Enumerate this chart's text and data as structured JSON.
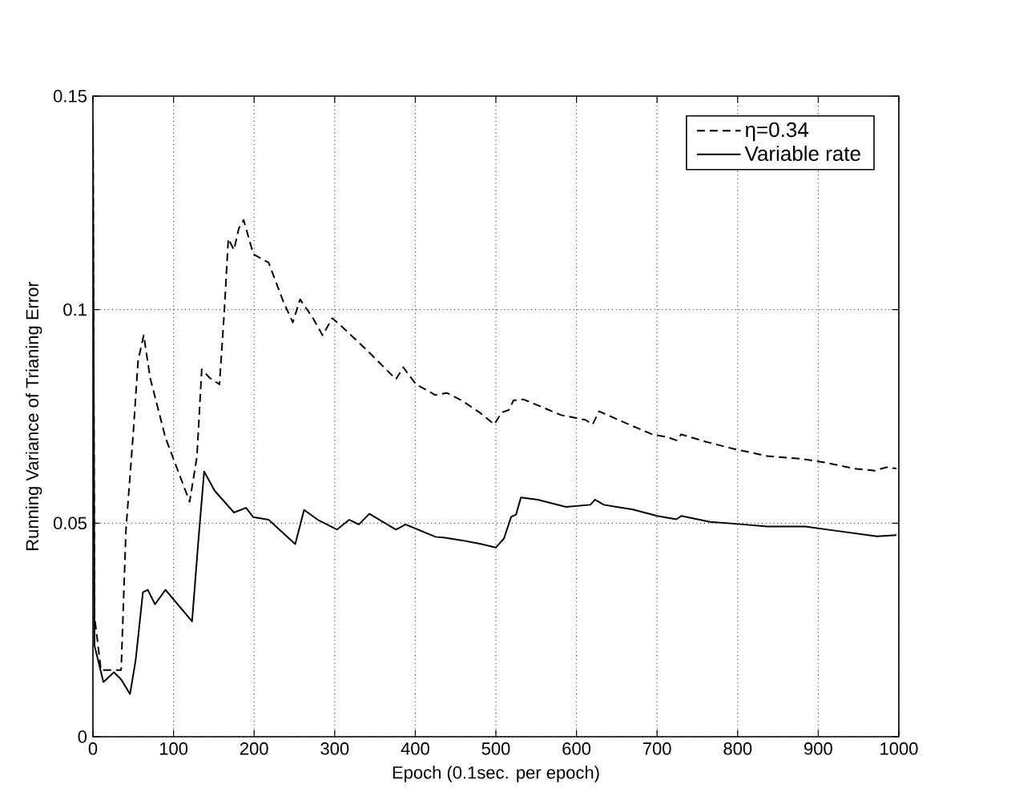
{
  "chart_data": {
    "type": "line",
    "xlabel": "Epoch (0.1sec. per epoch)",
    "ylabel": "Running Variance of Trianing Error",
    "xlim": [
      0,
      1000
    ],
    "ylim": [
      0,
      0.15
    ],
    "xticks": [
      0,
      100,
      200,
      300,
      400,
      500,
      600,
      700,
      800,
      900,
      1000
    ],
    "yticks": [
      0,
      0.05,
      0.1,
      0.15
    ],
    "grid": true,
    "legend": "top right",
    "series": [
      {
        "name": "η=0.34",
        "color": "#000000",
        "line_style": "dashed",
        "x": [
          0,
          2,
          4,
          10,
          20,
          35,
          41,
          50,
          56,
          63,
          71,
          90,
          120,
          129,
          135,
          145,
          157,
          163,
          168,
          175,
          181,
          187,
          199,
          218,
          236,
          248,
          257,
          273,
          285,
          297,
          309,
          340,
          376,
          385,
          401,
          425,
          439,
          457,
          480,
          498,
          507,
          516,
          522,
          528,
          534,
          552,
          581,
          611,
          620,
          628,
          659,
          694,
          712,
          724,
          730,
          760,
          795,
          837,
          878,
          908,
          944,
          970,
          985,
          997
        ],
        "values": [
          0.144,
          0.028,
          0.025,
          0.0156,
          0.0156,
          0.0156,
          0.0485,
          0.071,
          0.088,
          0.094,
          0.084,
          0.07,
          0.055,
          0.0655,
          0.086,
          0.084,
          0.0825,
          0.0995,
          0.1166,
          0.114,
          0.119,
          0.121,
          0.113,
          0.111,
          0.102,
          0.097,
          0.1024,
          0.098,
          0.094,
          0.098,
          0.096,
          0.0905,
          0.0837,
          0.0865,
          0.0825,
          0.08,
          0.0805,
          0.0788,
          0.0759,
          0.0731,
          0.0759,
          0.0765,
          0.0788,
          0.0788,
          0.079,
          0.0776,
          0.0753,
          0.0742,
          0.0731,
          0.0762,
          0.0736,
          0.0708,
          0.0702,
          0.0694,
          0.0708,
          0.0691,
          0.0674,
          0.0657,
          0.0651,
          0.0642,
          0.0628,
          0.0623,
          0.0631,
          0.0628
        ]
      },
      {
        "name": "Variable rate",
        "color": "#000000",
        "line_style": "solid",
        "x": [
          0,
          2,
          5,
          13,
          26,
          35,
          46,
          53,
          62,
          68,
          77,
          90,
          123,
          131,
          138,
          151,
          175,
          190,
          199,
          218,
          251,
          262,
          279,
          303,
          318,
          330,
          343,
          376,
          388,
          425,
          437,
          457,
          480,
          500,
          510,
          519,
          525,
          531,
          552,
          587,
          617,
          623,
          634,
          670,
          700,
          724,
          730,
          766,
          801,
          837,
          884,
          919,
          973,
          997
        ],
        "values": [
          0.144,
          0.0213,
          0.019,
          0.0128,
          0.0151,
          0.0134,
          0.01,
          0.0179,
          0.0338,
          0.0344,
          0.031,
          0.0344,
          0.027,
          0.0463,
          0.0621,
          0.0576,
          0.0525,
          0.0536,
          0.0514,
          0.0508,
          0.0451,
          0.0531,
          0.0508,
          0.0485,
          0.0508,
          0.0497,
          0.0522,
          0.0485,
          0.0497,
          0.0468,
          0.0466,
          0.046,
          0.0452,
          0.0443,
          0.0464,
          0.0515,
          0.052,
          0.056,
          0.0555,
          0.0538,
          0.0543,
          0.0555,
          0.0543,
          0.0532,
          0.0517,
          0.0509,
          0.0517,
          0.0503,
          0.0498,
          0.0492,
          0.0492,
          0.0483,
          0.0469,
          0.0472
        ]
      }
    ]
  }
}
